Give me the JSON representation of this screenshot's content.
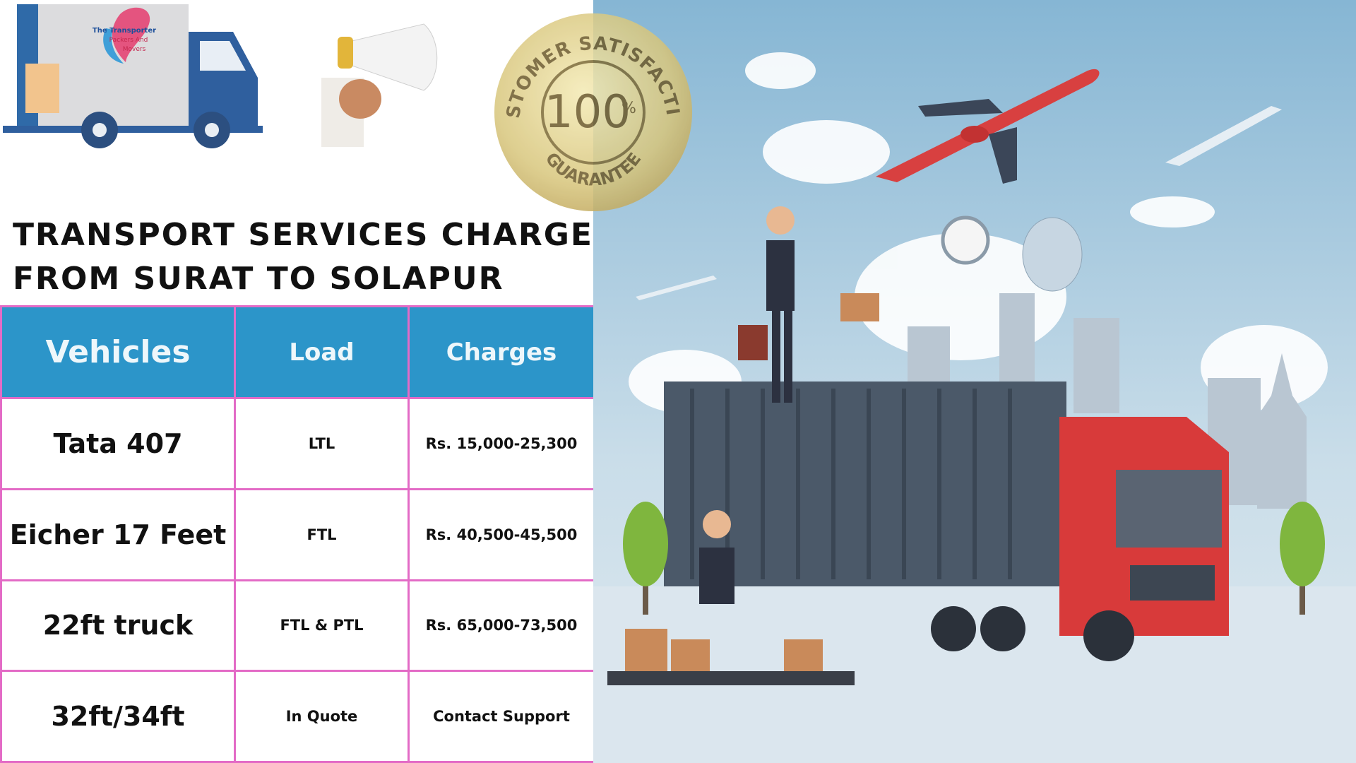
{
  "logo": {
    "lines": [
      "The Transporter",
      "Packers And",
      "Movers"
    ]
  },
  "badge": {
    "top": "CUSTOMER SATISFACTION",
    "number": "100",
    "symbol": "%",
    "bottom": "GUARANTEE"
  },
  "title": {
    "lines": [
      "TRANSPORT SERVICES CHARGES",
      "FROM SURAT TO SOLAPUR"
    ]
  },
  "table": {
    "headers": [
      "Vehicles",
      "Load",
      "Charges"
    ],
    "rows": [
      [
        "Tata 407",
        "LTL",
        "Rs. 15,000-25,300"
      ],
      [
        "Eicher 17 Feet",
        "FTL",
        "Rs. 40,500-45,500"
      ],
      [
        "22ft truck",
        "FTL & PTL",
        "Rs. 65,000-73,500"
      ],
      [
        "32ft/34ft",
        "In Quote",
        "Contact Support"
      ]
    ]
  }
}
